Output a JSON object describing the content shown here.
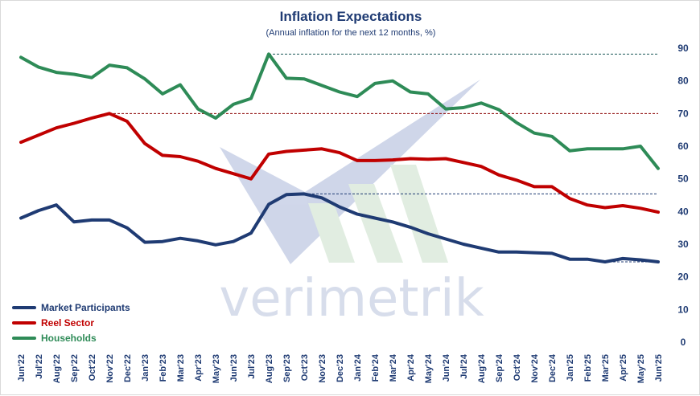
{
  "chart_data": {
    "type": "line",
    "title": "Inflation Expectations",
    "subtitle": "(Annual inflation for the next 12 months, %)",
    "watermark": "verimetrik",
    "x": [
      "Jun'22",
      "Jul'22",
      "Aug'22",
      "Sep'22",
      "Oct'22",
      "Nov'22",
      "Dec'22",
      "Jan'23",
      "Feb'23",
      "Mar'23",
      "Apr'23",
      "May'23",
      "Jun'23",
      "Jul'23",
      "Aug'23",
      "Sep'23",
      "Oct'23",
      "Nov'23",
      "Dec'23",
      "Jan'24",
      "Feb'24",
      "Mar'24",
      "Apr'24",
      "May'24",
      "Jun'24",
      "Jul'24",
      "Aug'24",
      "Sep'24",
      "Oct'24",
      "Nov'24",
      "Dec'24",
      "Jan'25",
      "Feb'25",
      "Mar'25",
      "Apr'25",
      "May'25",
      "Jun'25"
    ],
    "ylim": [
      0,
      90
    ],
    "yticks": [
      0,
      10,
      20,
      30,
      40,
      50,
      60,
      70,
      80,
      90
    ],
    "grid": false,
    "legend_position": "bottom-left",
    "series": [
      {
        "name": "Market Participants",
        "color": "#1f3b73",
        "values": [
          38.0,
          40.3,
          42.0,
          36.8,
          37.4,
          37.4,
          35.0,
          30.6,
          30.8,
          31.8,
          31.0,
          29.8,
          30.8,
          33.4,
          42.2,
          45.2,
          45.4,
          44.2,
          41.4,
          39.2,
          38.0,
          36.8,
          35.2,
          33.2,
          31.6,
          30.0,
          28.8,
          27.6,
          27.6,
          27.4,
          27.2,
          25.4,
          25.4,
          24.6,
          25.6,
          25.2,
          24.6
        ]
      },
      {
        "name": "Reel Sector",
        "color": "#c00000",
        "values": [
          61.2,
          63.4,
          65.6,
          67.0,
          68.6,
          70.0,
          67.6,
          60.8,
          57.2,
          56.8,
          55.4,
          53.2,
          51.6,
          50.0,
          57.6,
          58.4,
          58.8,
          59.2,
          58.0,
          55.6,
          55.6,
          55.8,
          56.2,
          56.0,
          56.2,
          55.0,
          53.8,
          51.2,
          49.6,
          47.6,
          47.6,
          44.0,
          42.0,
          41.2,
          41.8,
          41.0,
          39.8
        ]
      },
      {
        "name": "Households",
        "color": "#2e8b57",
        "values": [
          87.2,
          84.2,
          82.6,
          82.0,
          81.0,
          84.8,
          84.0,
          80.6,
          76.0,
          78.8,
          71.4,
          68.6,
          72.8,
          74.6,
          88.2,
          80.8,
          80.6,
          78.6,
          76.6,
          75.2,
          79.2,
          80.0,
          76.6,
          76.0,
          71.4,
          71.8,
          73.2,
          71.2,
          67.2,
          64.0,
          63.0,
          58.6,
          59.2,
          59.2,
          59.2,
          60.0,
          53.2
        ]
      }
    ],
    "reference_lines": [
      {
        "value": 88.2,
        "from": "Aug'23",
        "to": "Jun'25",
        "color": "#1f5a5a"
      },
      {
        "value": 70.0,
        "from": "Nov'22",
        "to": "Jun'25",
        "color": "#8b0000"
      },
      {
        "value": 45.4,
        "from": "Oct'23",
        "to": "Jun'25",
        "color": "#1f3b73"
      },
      {
        "value": 24.6,
        "from": "Mar'25",
        "to": "Jun'25",
        "color": "#1f3b73"
      }
    ]
  }
}
